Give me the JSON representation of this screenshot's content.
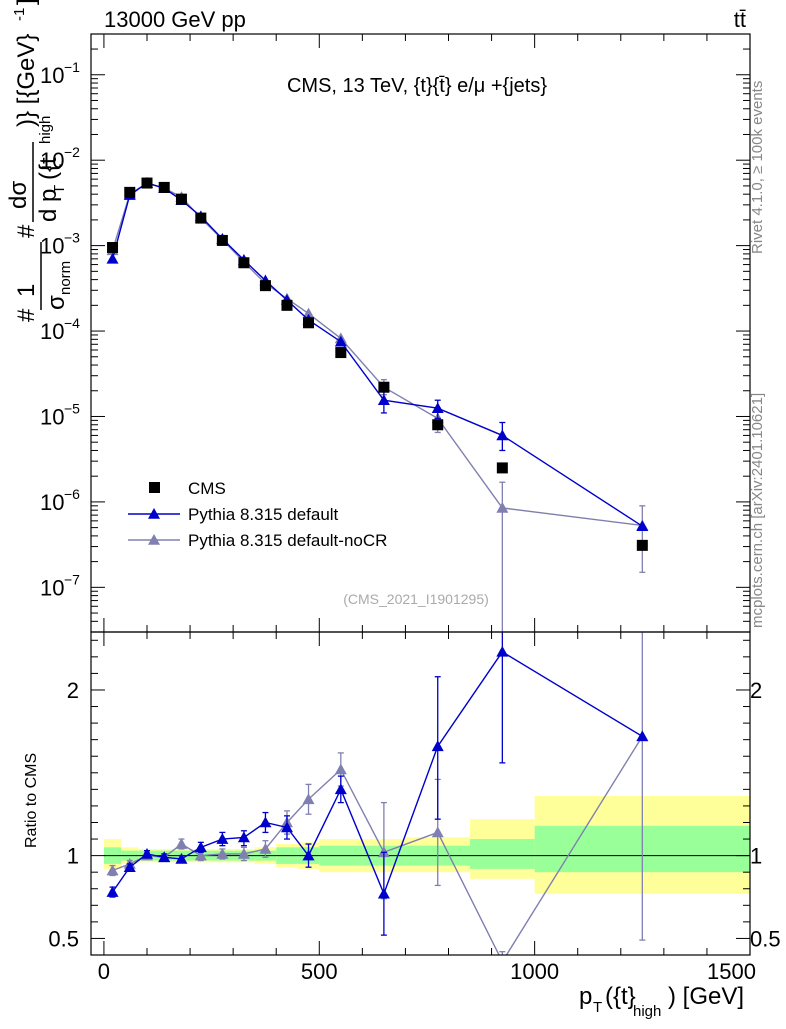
{
  "header": {
    "beam": "13000 GeV pp",
    "process": "tt̄",
    "analysis_title": "CMS, 13 TeV, {t}{t̄} e/μ +{jets}",
    "watermark": "(CMS_2021_I1901295)",
    "side_rivet": "Rivet 4.1.0, ≥ 100k events",
    "side_mcplots": "mcplots.cern.ch [arXiv:2401.10621]"
  },
  "colors": {
    "data": "#000000",
    "pythia_default": "#0000cc",
    "pythia_nocr": "#8080b0",
    "band_inner": "#99ff99",
    "band_outer": "#ffff99"
  },
  "chart_data": [
    {
      "type": "scatter",
      "name": "main",
      "yscale": "log",
      "ylabel_parts": [
        "#",
        "1",
        "σ",
        "norm",
        "#",
        "dσ",
        "d p",
        "T",
        "({t",
        "high",
        ")} [{GeV}",
        "-1",
        "]"
      ],
      "xlim": [
        -30,
        1500
      ],
      "ylim": [
        3e-08,
        0.3
      ],
      "ytick_labels": [
        {
          "v": 1e-07,
          "base": "10",
          "exp": "−7"
        },
        {
          "v": 1e-06,
          "base": "10",
          "exp": "−6"
        },
        {
          "v": 1e-05,
          "base": "10",
          "exp": "−5"
        },
        {
          "v": 0.0001,
          "base": "10",
          "exp": "−4"
        },
        {
          "v": 0.001,
          "base": "10",
          "exp": "−3"
        },
        {
          "v": 0.01,
          "base": "10",
          "exp": "−2"
        },
        {
          "v": 0.1,
          "base": "10",
          "exp": "−1"
        }
      ],
      "legend": [
        {
          "label": "CMS",
          "series": "cms"
        },
        {
          "label": "Pythia 8.315 default",
          "series": "default"
        },
        {
          "label": "Pythia 8.315 default-noCR",
          "series": "nocr"
        }
      ],
      "series": [
        {
          "name": "CMS",
          "key": "cms",
          "x": [
            20,
            60,
            100,
            140,
            180,
            225,
            275,
            325,
            375,
            425,
            475,
            550,
            650,
            775,
            925,
            1250
          ],
          "y": [
            0.00095,
            0.0042,
            0.0054,
            0.0048,
            0.0035,
            0.0021,
            0.00115,
            0.00063,
            0.00034,
            0.0002,
            0.000125,
            5.6e-05,
            2.2e-05,
            8e-06,
            2.5e-06,
            3.1e-07
          ]
        },
        {
          "name": "Pythia 8.315 default",
          "key": "default",
          "x": [
            20,
            60,
            100,
            140,
            180,
            225,
            275,
            325,
            375,
            425,
            475,
            550,
            650,
            775,
            925,
            1250
          ],
          "y": [
            0.0007,
            0.0039,
            0.0054,
            0.0047,
            0.0034,
            0.0022,
            0.0012,
            0.00068,
            0.00039,
            0.00023,
            0.000135,
            7.5e-05,
            1.55e-05,
            1.25e-05,
            6e-06,
            5.2e-07
          ],
          "err_lo": [
            null,
            null,
            null,
            null,
            null,
            null,
            null,
            null,
            null,
            null,
            null,
            null,
            1.1e-05,
            9.5e-06,
            4e-06,
            null
          ],
          "err_hi": [
            null,
            null,
            null,
            null,
            null,
            null,
            null,
            null,
            null,
            null,
            null,
            null,
            2e-05,
            1.55e-05,
            8.5e-06,
            null
          ]
        },
        {
          "name": "Pythia 8.315 default-noCR",
          "key": "nocr",
          "x": [
            20,
            60,
            100,
            140,
            180,
            225,
            275,
            325,
            375,
            425,
            475,
            550,
            650,
            775,
            925,
            1250
          ],
          "y": [
            0.00088,
            0.004,
            0.0054,
            0.0047,
            0.0037,
            0.0021,
            0.00118,
            0.00064,
            0.00036,
            0.00024,
            0.00016,
            8.2e-05,
            2.2e-05,
            9.5e-06,
            8.5e-07,
            5.3e-07
          ],
          "err_lo": [
            null,
            null,
            null,
            null,
            null,
            null,
            null,
            null,
            null,
            null,
            null,
            null,
            1.8e-05,
            6.5e-06,
            1e-08,
            1.5e-07
          ],
          "err_hi": [
            null,
            null,
            null,
            null,
            null,
            null,
            null,
            null,
            null,
            null,
            null,
            null,
            2.7e-05,
            1.2e-05,
            1.7e-06,
            9e-07
          ]
        }
      ]
    },
    {
      "type": "line",
      "name": "ratio",
      "ylabel": "Ratio to CMS",
      "xlabel_parts": [
        "p",
        "T",
        "({t}",
        "high",
        ") [GeV]"
      ],
      "xlim": [
        -30,
        1500
      ],
      "ylim": [
        0.4,
        2.35
      ],
      "xtick_labels": [
        {
          "v": 0,
          "t": "0"
        },
        {
          "v": 500,
          "t": "500"
        },
        {
          "v": 1000,
          "t": "1000"
        },
        {
          "v": 1500,
          "t": "1500"
        }
      ],
      "ytick_labels": [
        {
          "v": 0.5,
          "t": "0.5"
        },
        {
          "v": 1,
          "t": "1"
        },
        {
          "v": 2,
          "t": "2"
        }
      ],
      "bands": {
        "edges": [
          0,
          40,
          80,
          120,
          160,
          200,
          250,
          300,
          350,
          400,
          450,
          500,
          600,
          700,
          850,
          1000,
          1500
        ],
        "inner": [
          [
            0.95,
            1.05
          ],
          [
            0.97,
            1.03
          ],
          [
            0.97,
            1.03
          ],
          [
            0.97,
            1.03
          ],
          [
            0.97,
            1.03
          ],
          [
            0.97,
            1.03
          ],
          [
            0.97,
            1.03
          ],
          [
            0.97,
            1.03
          ],
          [
            0.97,
            1.03
          ],
          [
            0.95,
            1.05
          ],
          [
            0.95,
            1.05
          ],
          [
            0.94,
            1.06
          ],
          [
            0.94,
            1.06
          ],
          [
            0.94,
            1.06
          ],
          [
            0.92,
            1.1
          ],
          [
            0.9,
            1.18
          ]
        ],
        "outer": [
          [
            0.92,
            1.1
          ],
          [
            0.95,
            1.05
          ],
          [
            0.96,
            1.04
          ],
          [
            0.96,
            1.04
          ],
          [
            0.96,
            1.04
          ],
          [
            0.96,
            1.04
          ],
          [
            0.96,
            1.04
          ],
          [
            0.96,
            1.04
          ],
          [
            0.95,
            1.05
          ],
          [
            0.93,
            1.07
          ],
          [
            0.92,
            1.08
          ],
          [
            0.9,
            1.1
          ],
          [
            0.9,
            1.1
          ],
          [
            0.9,
            1.11
          ],
          [
            0.86,
            1.22
          ],
          [
            0.77,
            1.36
          ]
        ]
      },
      "series": [
        {
          "name": "Pythia 8.315 default",
          "key": "default",
          "x": [
            20,
            60,
            100,
            140,
            180,
            225,
            275,
            325,
            375,
            425,
            475,
            550,
            650,
            775,
            925,
            1250
          ],
          "y": [
            0.78,
            0.93,
            1.01,
            0.99,
            0.98,
            1.05,
            1.1,
            1.11,
            1.2,
            1.17,
            1.0,
            1.4,
            0.77,
            1.66,
            2.23,
            1.72
          ],
          "err_lo": [
            0.75,
            0.91,
            0.99,
            0.97,
            0.96,
            1.02,
            1.06,
            1.06,
            1.14,
            1.1,
            0.93,
            1.32,
            0.52,
            1.22,
            1.56,
            null
          ],
          "err_hi": [
            0.81,
            0.95,
            1.03,
            1.01,
            1.0,
            1.08,
            1.14,
            1.15,
            1.26,
            1.24,
            1.07,
            1.48,
            1.02,
            2.08,
            2.9,
            null
          ]
        },
        {
          "name": "Pythia 8.315 default-noCR",
          "key": "nocr",
          "x": [
            20,
            60,
            100,
            140,
            180,
            225,
            275,
            325,
            375,
            425,
            475,
            550,
            650,
            775,
            925,
            1250
          ],
          "y": [
            0.91,
            0.95,
            1.0,
            0.99,
            1.07,
            1.0,
            1.01,
            1.01,
            1.04,
            1.2,
            1.34,
            1.52,
            1.02,
            1.14,
            0.36,
            1.72
          ],
          "err_lo": [
            0.88,
            0.93,
            0.98,
            0.97,
            1.04,
            0.97,
            0.98,
            0.97,
            0.99,
            1.13,
            1.25,
            1.42,
            0.74,
            0.82,
            0.3,
            0.49
          ],
          "err_hi": [
            0.94,
            0.97,
            1.02,
            1.01,
            1.1,
            1.03,
            1.04,
            1.05,
            1.09,
            1.27,
            1.43,
            1.62,
            1.32,
            1.46,
            0.42,
            2.95
          ]
        }
      ]
    }
  ]
}
